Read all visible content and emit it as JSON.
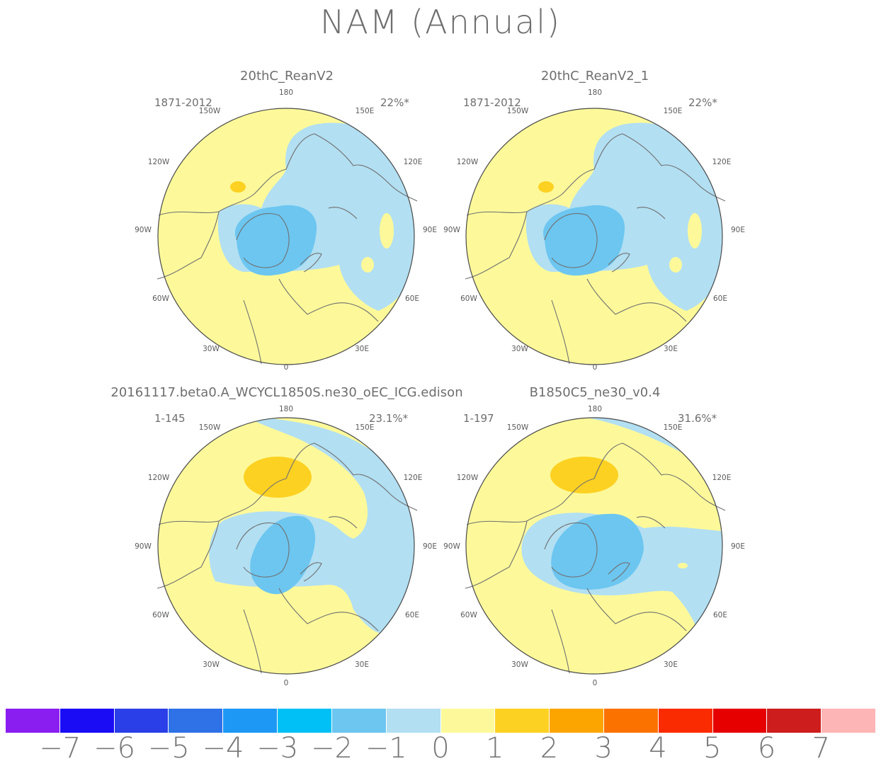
{
  "title": "NAM (Annual)",
  "panels": [
    {
      "name": "20thC_ReanV2",
      "period": "1871-2012",
      "variance": "22%*",
      "longitudes": {
        "180": "180",
        "150E": "150E",
        "120E": "120E",
        "90E": "90E",
        "60E": "60E",
        "30E": "30E",
        "0": "0",
        "30W": "30W",
        "60W": "60W",
        "90W": "90W",
        "120W": "120W",
        "150W": "150W"
      }
    },
    {
      "name": "20thC_ReanV2_1",
      "period": "1871-2012",
      "variance": "22%*",
      "longitudes": {
        "180": "180",
        "150E": "150E",
        "120E": "120E",
        "90E": "90E",
        "60E": "60E",
        "30E": "30E",
        "0": "0",
        "30W": "30W",
        "60W": "60W",
        "90W": "90W",
        "120W": "120W",
        "150W": "150W"
      }
    },
    {
      "name": "20161117.beta0.A_WCYCL1850S.ne30_oEC_ICG.edison",
      "period": "1-145",
      "variance": "23.1%*",
      "longitudes": {
        "180": "180",
        "150E": "150E",
        "120E": "120E",
        "90E": "90E",
        "60E": "60E",
        "30E": "30E",
        "0": "0",
        "30W": "30W",
        "60W": "60W",
        "90W": "90W",
        "120W": "120W",
        "150W": "150W"
      }
    },
    {
      "name": "B1850C5_ne30_v0.4",
      "period": "1-197",
      "variance": "31.6%*",
      "longitudes": {
        "180": "180",
        "150E": "150E",
        "120E": "120E",
        "90E": "90E",
        "60E": "60E",
        "30E": "30E",
        "0": "0",
        "30W": "30W",
        "60W": "60W",
        "90W": "90W",
        "120W": "120W",
        "150W": "150W"
      }
    }
  ],
  "colorbar": {
    "colors": [
      "#8a1ef0",
      "#1a0cf5",
      "#2a3fe8",
      "#2f72e8",
      "#1e98f5",
      "#00c0f5",
      "#6cc6f0",
      "#b2dff2",
      "#fdf99a",
      "#fdd122",
      "#fca500",
      "#fc7200",
      "#fb2b00",
      "#e60000",
      "#cd1d1d",
      "#fdb5b5"
    ],
    "ticks": [
      "−7",
      "−6",
      "−5",
      "−4",
      "−3",
      "−2",
      "−1",
      "0",
      "1",
      "2",
      "3",
      "4",
      "5",
      "6",
      "7"
    ]
  }
}
